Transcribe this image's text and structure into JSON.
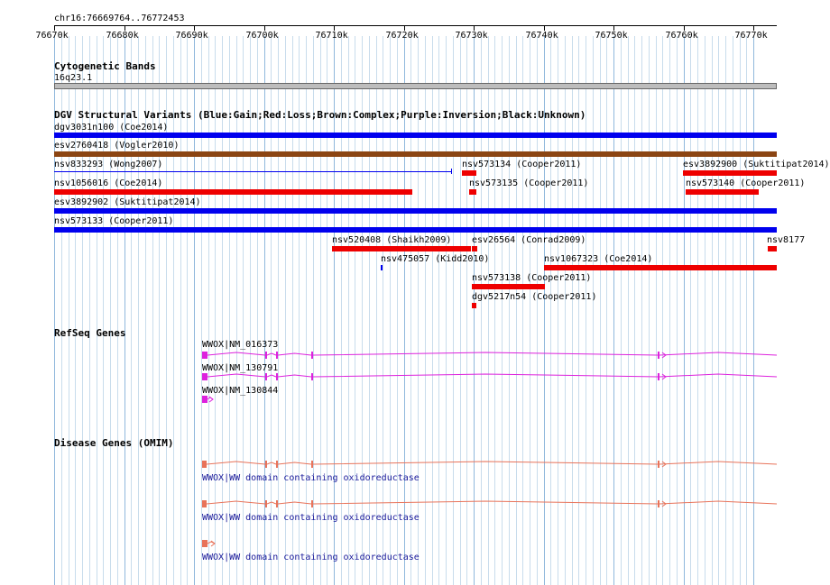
{
  "ruler": {
    "locus": "chr16:76669764..76772453",
    "ticks": [
      "76670k",
      "76680k",
      "76690k",
      "76700k",
      "76710k",
      "76720k",
      "76730k",
      "76740k",
      "76750k",
      "76760k",
      "76770k"
    ]
  },
  "cytoband": {
    "title": "Cytogenetic Bands",
    "band": "16q23.1"
  },
  "dgv": {
    "title": "DGV Structural Variants (Blue:Gain;Red:Loss;Brown:Complex;Purple:Inversion;Black:Unknown)",
    "colors": {
      "gain": "#0000ee",
      "loss": "#ee0000",
      "complex": "#8b4513"
    },
    "variants": [
      {
        "label": "dgv3031n100 (Coe2014)",
        "type": "gain"
      },
      {
        "label": "esv2760418 (Vogler2010)",
        "type": "complex"
      },
      {
        "label": "nsv833293 (Wong2007)",
        "type": "gain"
      },
      {
        "label": "nsv573134 (Cooper2011)",
        "type": "loss"
      },
      {
        "label": "esv3892900 (Suktitipat2014)",
        "type": "loss"
      },
      {
        "label": "nsv1056016 (Coe2014)",
        "type": "loss"
      },
      {
        "label": "nsv573135 (Cooper2011)",
        "type": "loss"
      },
      {
        "label": "nsv573140 (Cooper2011)",
        "type": "loss"
      },
      {
        "label": "esv3892902 (Suktitipat2014)",
        "type": "gain"
      },
      {
        "label": "nsv573133 (Cooper2011)",
        "type": "gain"
      },
      {
        "label": "nsv520408 (Shaikh2009)",
        "type": "loss"
      },
      {
        "label": "esv26564 (Conrad2009)",
        "type": "loss"
      },
      {
        "label": "nsv8177",
        "type": "loss"
      },
      {
        "label": "nsv475057 (Kidd2010)",
        "type": "gain"
      },
      {
        "label": "nsv1067323 (Coe2014)",
        "type": "loss"
      },
      {
        "label": "nsv573138 (Cooper2011)",
        "type": "loss"
      },
      {
        "label": "dgv5217n54 (Cooper2011)",
        "type": "loss"
      }
    ]
  },
  "refseq": {
    "title": "RefSeq Genes",
    "color": "#dd22dd",
    "transcripts": [
      "WWOX|NM_016373",
      "WWOX|NM_130791",
      "WWOX|NM_130844"
    ]
  },
  "omim": {
    "title": "Disease Genes (OMIM)",
    "color": "#e8735a",
    "entries": [
      "WWOX|WW domain containing oxidoreductase",
      "WWOX|WW domain containing oxidoreductase",
      "WWOX|WW domain containing oxidoreductase"
    ]
  }
}
